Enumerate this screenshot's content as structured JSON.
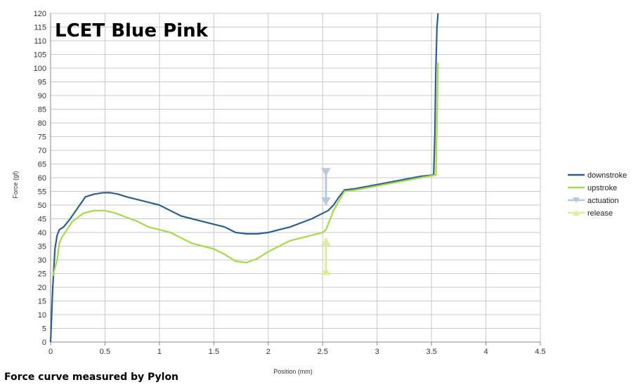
{
  "chart_data": {
    "type": "line",
    "title": "LCET Blue Pink",
    "xlabel": "Position (mm)",
    "ylabel": "Force (gf)",
    "xlim": [
      0,
      4.5
    ],
    "ylim": [
      0,
      120
    ],
    "xticks": [
      "0",
      "0.5",
      "1",
      "1.5",
      "2",
      "2.5",
      "3",
      "3.5",
      "4",
      "4.5"
    ],
    "yticks": [
      "0",
      "5",
      "10",
      "15",
      "20",
      "25",
      "30",
      "35",
      "40",
      "45",
      "50",
      "55",
      "60",
      "65",
      "70",
      "75",
      "80",
      "85",
      "90",
      "95",
      "100",
      "105",
      "110",
      "115",
      "120"
    ],
    "grid": true,
    "legend_position": "right",
    "series": [
      {
        "name": "downstroke",
        "color": "#2e5e8e",
        "x": [
          0.0,
          0.02,
          0.04,
          0.06,
          0.08,
          0.12,
          0.18,
          0.25,
          0.32,
          0.4,
          0.48,
          0.55,
          0.62,
          0.7,
          0.8,
          0.9,
          1.0,
          1.1,
          1.2,
          1.3,
          1.4,
          1.5,
          1.6,
          1.7,
          1.8,
          1.9,
          2.0,
          2.1,
          2.2,
          2.3,
          2.4,
          2.5,
          2.55,
          2.6,
          2.65,
          2.7,
          2.8,
          3.0,
          3.2,
          3.4,
          3.52,
          3.53,
          3.54,
          3.55,
          3.56
        ],
        "y": [
          0,
          20,
          34,
          39,
          41,
          42,
          45,
          49,
          53,
          54,
          54.5,
          54.5,
          54,
          53,
          52,
          51,
          50,
          48,
          46,
          45,
          44,
          43,
          42,
          40,
          39.5,
          39.5,
          40,
          41,
          42,
          43.5,
          45,
          47,
          48,
          50,
          53,
          55.5,
          56,
          57.5,
          59,
          60.5,
          61,
          75,
          100,
          115,
          120
        ]
      },
      {
        "name": "upstroke",
        "color": "#a6d84a",
        "x": [
          0.02,
          0.04,
          0.06,
          0.08,
          0.1,
          0.15,
          0.2,
          0.3,
          0.4,
          0.5,
          0.6,
          0.7,
          0.8,
          0.9,
          1.0,
          1.1,
          1.2,
          1.3,
          1.4,
          1.5,
          1.6,
          1.7,
          1.8,
          1.9,
          2.0,
          2.1,
          2.2,
          2.3,
          2.4,
          2.5,
          2.53,
          2.6,
          2.7,
          2.8,
          3.0,
          3.2,
          3.4,
          3.54,
          3.55,
          3.56
        ],
        "y": [
          24,
          27,
          30,
          36,
          38,
          41,
          44,
          47,
          48,
          48,
          47,
          45.5,
          44,
          42,
          41,
          40,
          38,
          36,
          35,
          34,
          32,
          29.5,
          29,
          30.5,
          33,
          35,
          37,
          38,
          39,
          40,
          41,
          48,
          55,
          55.5,
          57,
          58.5,
          60,
          61,
          80,
          102
        ]
      },
      {
        "name": "actuation",
        "color": "#b8c8de",
        "marker": "triangle-down",
        "x": [
          2.53,
          2.53
        ],
        "y": [
          62,
          50
        ]
      },
      {
        "name": "release",
        "color": "#dcee9c",
        "marker": "triangle-up",
        "x": [
          2.53,
          2.53
        ],
        "y": [
          26,
          38
        ]
      }
    ]
  },
  "footer": "Force curve measured by Pylon"
}
